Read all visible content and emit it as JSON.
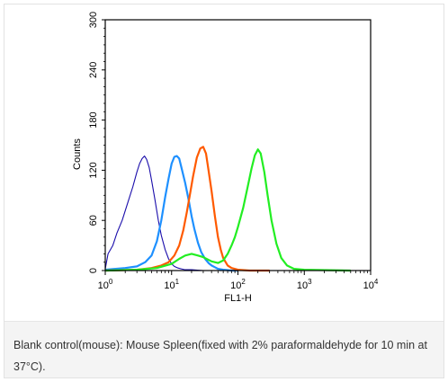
{
  "chart_data": {
    "type": "line",
    "title": "",
    "xlabel": "FL1-H",
    "ylabel": "Counts",
    "x_scale": "log",
    "xlim": [
      1,
      10000
    ],
    "ylim": [
      0,
      300
    ],
    "x_ticks": [
      {
        "value": 1,
        "base": "10",
        "exp": "0"
      },
      {
        "value": 10,
        "base": "10",
        "exp": "1"
      },
      {
        "value": 100,
        "base": "10",
        "exp": "2"
      },
      {
        "value": 1000,
        "base": "10",
        "exp": "3"
      },
      {
        "value": 10000,
        "base": "10",
        "exp": "4"
      }
    ],
    "y_ticks": [
      "0",
      "60",
      "120",
      "180",
      "240",
      "300"
    ],
    "grid": false,
    "series": [
      {
        "color": "#1a0dab",
        "x": [
          1,
          1.1,
          1.3,
          1.5,
          1.8,
          2.2,
          2.6,
          3,
          3.3,
          3.6,
          3.9,
          4.2,
          4.6,
          5,
          5.6,
          6.3,
          7,
          8,
          9,
          10,
          11,
          12.5,
          14,
          16,
          20,
          30,
          50,
          100
        ],
        "y": [
          2,
          20,
          30,
          45,
          60,
          82,
          100,
          118,
          128,
          134,
          137,
          133,
          123,
          108,
          85,
          60,
          42,
          25,
          14,
          8,
          5,
          3,
          2,
          1,
          1,
          0,
          0,
          0
        ]
      },
      {
        "color": "#1e90ff",
        "x": [
          1,
          2,
          3,
          4,
          5,
          6,
          7,
          8,
          9,
          10,
          11,
          12,
          13,
          14,
          16,
          18,
          20,
          22,
          25,
          28,
          32,
          36,
          40,
          45,
          50,
          60,
          80,
          100
        ],
        "y": [
          1,
          3,
          5,
          10,
          18,
          35,
          60,
          88,
          110,
          128,
          136,
          137,
          134,
          124,
          105,
          85,
          65,
          50,
          33,
          22,
          14,
          9,
          6,
          4,
          2,
          1,
          0,
          0
        ]
      },
      {
        "color": "#ff5a00",
        "x": [
          1,
          3,
          5,
          7,
          9,
          11,
          13,
          15,
          17,
          19,
          21,
          24,
          27,
          30,
          33,
          36,
          40,
          45,
          50,
          55,
          60,
          70,
          80,
          100,
          150,
          300
        ],
        "y": [
          0,
          1,
          3,
          6,
          10,
          18,
          30,
          48,
          70,
          92,
          112,
          135,
          146,
          148,
          140,
          120,
          95,
          65,
          40,
          25,
          15,
          6,
          3,
          1,
          0,
          0
        ]
      },
      {
        "color": "#22ee22",
        "x": [
          1,
          3,
          6,
          10,
          13,
          16,
          20,
          25,
          30,
          40,
          50,
          60,
          70,
          80,
          90,
          100,
          120,
          140,
          160,
          180,
          200,
          220,
          250,
          280,
          320,
          380,
          450,
          550,
          700,
          1000,
          5000
        ],
        "y": [
          0,
          1,
          3,
          8,
          14,
          18,
          20,
          18,
          16,
          11,
          9,
          12,
          20,
          30,
          40,
          52,
          75,
          100,
          122,
          138,
          145,
          140,
          118,
          90,
          60,
          32,
          15,
          6,
          2,
          1,
          0
        ]
      }
    ]
  },
  "caption": {
    "text": "Blank control(mouse): Mouse Spleen(fixed with 2% paraformaldehyde for 10 min at 37°C)."
  }
}
